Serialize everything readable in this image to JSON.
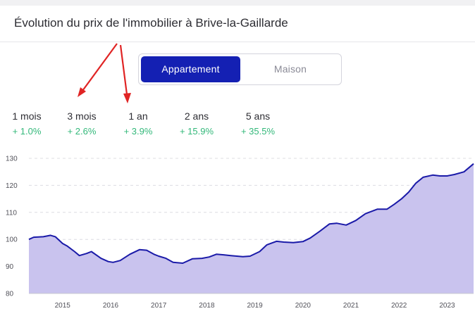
{
  "header": {
    "title": "Évolution du prix de l'immobilier à Brive-la-Gaillarde"
  },
  "toggle": {
    "active_label": "Appartement",
    "inactive_label": "Maison"
  },
  "periods": [
    {
      "label": "1 mois",
      "value": "+ 1.0%"
    },
    {
      "label": "3 mois",
      "value": "+ 2.6%"
    },
    {
      "label": "1 an",
      "value": "+ 3.9%"
    },
    {
      "label": "2 ans",
      "value": "+ 15.9%"
    },
    {
      "label": "5 ans",
      "value": "+ 35.5%"
    }
  ],
  "colors": {
    "accent": "#1420b3",
    "positive": "#33b87a",
    "line": "#1a1aa8",
    "area": "#c9c3ee",
    "annotation": "#e02424"
  },
  "chart_data": {
    "type": "area",
    "title": "",
    "xlabel": "",
    "ylabel": "",
    "xlim": [
      2014.3,
      2023.55
    ],
    "ylim": [
      80,
      130
    ],
    "y_ticks": [
      80,
      90,
      100,
      110,
      120,
      130
    ],
    "x_ticks": [
      2015,
      2016,
      2017,
      2018,
      2019,
      2020,
      2021,
      2022,
      2023
    ],
    "x_tick_labels": [
      "2015",
      "2016",
      "2017",
      "2018",
      "2019",
      "2020",
      "2021",
      "2022",
      "2023"
    ],
    "grid": "horizontal-dashed",
    "series": [
      {
        "name": "Appartement",
        "x": [
          2014.3,
          2014.4,
          2014.6,
          2014.75,
          2014.85,
          2015.0,
          2015.1,
          2015.25,
          2015.35,
          2015.5,
          2015.6,
          2015.8,
          2015.95,
          2016.05,
          2016.2,
          2016.4,
          2016.6,
          2016.75,
          2016.9,
          2017.0,
          2017.15,
          2017.3,
          2017.5,
          2017.7,
          2017.9,
          2018.05,
          2018.2,
          2018.35,
          2018.5,
          2018.75,
          2018.9,
          2019.1,
          2019.25,
          2019.45,
          2019.6,
          2019.8,
          2020.0,
          2020.15,
          2020.35,
          2020.55,
          2020.7,
          2020.9,
          2021.1,
          2021.3,
          2021.55,
          2021.75,
          2021.9,
          2022.05,
          2022.2,
          2022.35,
          2022.5,
          2022.7,
          2022.85,
          2023.0,
          2023.15,
          2023.35,
          2023.55
        ],
        "values": [
          100.0,
          100.8,
          101.0,
          101.5,
          101.0,
          98.5,
          97.5,
          95.5,
          94.0,
          94.8,
          95.5,
          93.0,
          91.8,
          91.5,
          92.2,
          94.5,
          96.2,
          96.0,
          94.5,
          93.8,
          93.0,
          91.5,
          91.2,
          92.8,
          93.0,
          93.5,
          94.5,
          94.3,
          94.0,
          93.6,
          93.8,
          95.5,
          98.0,
          99.3,
          99.0,
          98.8,
          99.2,
          100.5,
          103.0,
          105.7,
          106.0,
          105.3,
          107.0,
          109.5,
          111.2,
          111.2,
          113.0,
          115.0,
          117.5,
          120.8,
          123.0,
          123.8,
          123.5,
          123.5,
          124.0,
          125.0,
          128.0
        ]
      }
    ]
  }
}
